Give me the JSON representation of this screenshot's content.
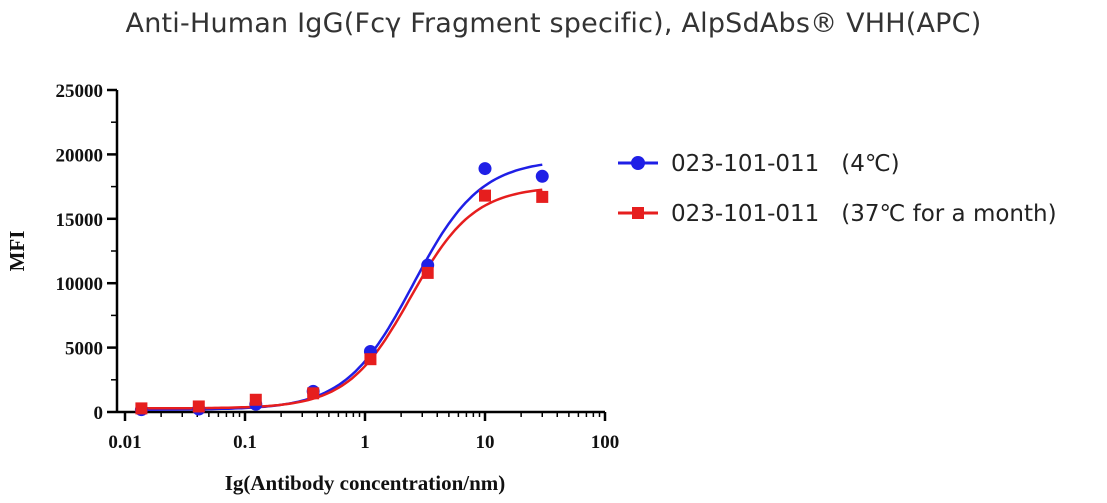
{
  "chart_data": {
    "type": "scatter",
    "title": "Anti-Human IgG(Fcγ Fragment specific), AlpSdAbs® VHH(APC)",
    "xlabel": "Ig(Antibody concentration/nm)",
    "ylabel": "MFI",
    "x_scale": "log",
    "xlim": [
      0.01,
      100
    ],
    "ylim": [
      0,
      25000
    ],
    "x_ticks": [
      "0.01",
      "0.1",
      "1",
      "10",
      "100"
    ],
    "y_ticks": [
      "0",
      "5000",
      "10000",
      "15000",
      "20000",
      "25000"
    ],
    "legend_position": "right",
    "grid": false,
    "fit": "four-parameter logistic curve through each series",
    "series": [
      {
        "name": "023-101-011   (4℃)",
        "color": "#1f1fe6",
        "marker": "circle",
        "x": [
          0.0137,
          0.0412,
          0.123,
          0.37,
          1.11,
          3.33,
          10,
          30
        ],
        "y": [
          180,
          230,
          600,
          1600,
          4700,
          11400,
          18900,
          18300
        ]
      },
      {
        "name": "023-101-011   (37℃ for a month)",
        "color": "#e61e1e",
        "marker": "square",
        "x": [
          0.0137,
          0.0412,
          0.123,
          0.37,
          1.11,
          3.33,
          10,
          30
        ],
        "y": [
          280,
          430,
          950,
          1450,
          4100,
          10800,
          16800,
          16700
        ]
      }
    ]
  }
}
